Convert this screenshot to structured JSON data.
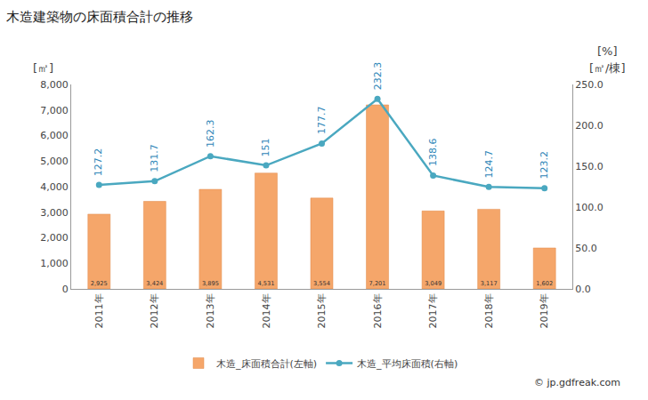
{
  "chart_data": {
    "type": "bar",
    "title": "木造建築物の床面積合計の推移",
    "ylabel": "[㎡]",
    "y2label": "[㎡/棟]",
    "annotations": [
      "[%]",
      "© jp.gdfreak.com"
    ],
    "categories": [
      "2011年",
      "2012年",
      "2013年",
      "2014年",
      "2015年",
      "2016年",
      "2017年",
      "2018年",
      "2019年"
    ],
    "series": [
      {
        "name": "木造_床面積合計(左軸)",
        "type": "bar",
        "color": "#f5a66a",
        "values": [
          2925,
          3424,
          3895,
          4531,
          3554,
          7201,
          3049,
          3117,
          1602
        ],
        "value_labels": [
          "2,925",
          "3,424",
          "3,895",
          "4,531",
          "3,554",
          "7,201",
          "3,049",
          "3,117",
          "1,602"
        ]
      },
      {
        "name": "木造_平均床面積(右軸)",
        "type": "line",
        "axis": "y2",
        "color": "#4aa8c0",
        "marker": "circle",
        "values": [
          127.2,
          131.7,
          162.3,
          151,
          177.7,
          232.3,
          138.6,
          124.7,
          123.2
        ]
      }
    ],
    "ylim": [
      0,
      8000
    ],
    "yticks": [
      0,
      {
        "value": 1000,
        "label": "1,000"
      },
      {
        "value": 2000,
        "label": "2,000"
      },
      {
        "value": 3000,
        "label": "3,000"
      },
      {
        "value": 4000,
        "label": "4,000"
      },
      {
        "value": 5000,
        "label": "5,000"
      },
      {
        "value": 6000,
        "label": "6,000"
      },
      {
        "value": 7000,
        "label": "7,000"
      },
      {
        "value": 8000,
        "label": "8,000"
      }
    ],
    "y2lim": [
      0,
      250
    ],
    "y2ticks": [
      {
        "value": 0,
        "label": "0.0"
      },
      {
        "value": 50,
        "label": "50.0"
      },
      {
        "value": 100,
        "label": "100.0"
      },
      {
        "value": 150,
        "label": "150.0"
      },
      {
        "value": 200,
        "label": "200.0"
      },
      {
        "value": 250,
        "label": "250.0"
      }
    ],
    "grid": false,
    "legend": "bottom",
    "data_labels": true
  }
}
